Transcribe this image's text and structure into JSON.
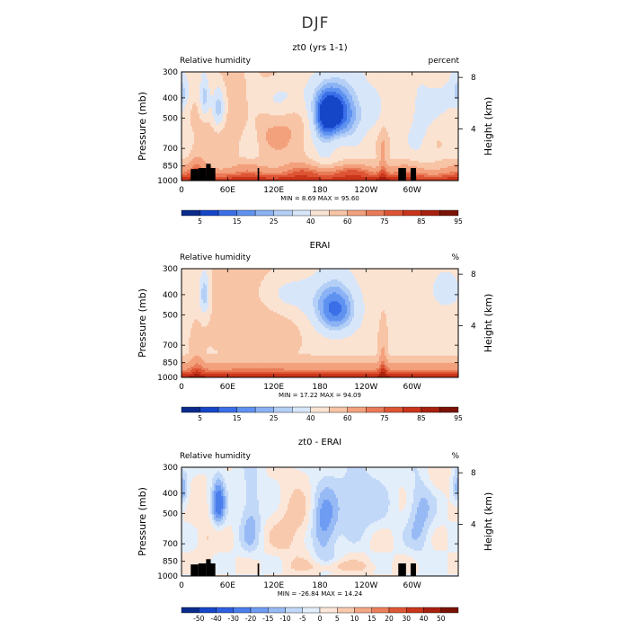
{
  "figure": {
    "title": "DJF"
  },
  "chart_data": [
    {
      "type": "heatmap",
      "title": "zt0 (yrs 1-1)",
      "left_label": "Relative humidity",
      "right_label": "percent",
      "ylabel": "Pressure (mb)",
      "ylabel_right": "Height (km)",
      "x_ticks": [
        "0",
        "60E",
        "120E",
        "180",
        "120W",
        "60W"
      ],
      "x_tick_values": [
        0,
        60,
        120,
        180,
        240,
        300
      ],
      "xlim": [
        0,
        360
      ],
      "y_ticks": [
        "300",
        "400",
        "500",
        "700",
        "850",
        "1000"
      ],
      "y_tick_values": [
        300,
        400,
        500,
        700,
        850,
        1000
      ],
      "ylim": [
        1000,
        300
      ],
      "y_scale": "log",
      "y_right_ticks": [
        "8",
        "4"
      ],
      "y_right_tick_values": [
        8,
        4
      ],
      "min_label": "MIN =",
      "min_value": "8.69",
      "max_label": "MAX =",
      "max_value": "95.60",
      "colorbar_labels": [
        "5",
        "15",
        "25",
        "40",
        "60",
        "75",
        "85",
        "95"
      ],
      "colorbar_colors": [
        "#0a2a8c",
        "#1646c8",
        "#3a6fe8",
        "#5f92f0",
        "#8ab2f4",
        "#b4cff6",
        "#d8e6fa",
        "#fbe3d2",
        "#f8c4a6",
        "#f3a17d",
        "#ea7b58",
        "#dd5534",
        "#c9351b",
        "#a8200e",
        "#7a1206"
      ],
      "field": "rh_model",
      "mask": [
        [
          12,
          22,
          880,
          1000
        ],
        [
          22,
          32,
          870,
          1000
        ],
        [
          32,
          38,
          830,
          1000
        ],
        [
          38,
          44,
          870,
          1000
        ],
        [
          99,
          101,
          870,
          1000
        ],
        [
          282,
          292,
          870,
          1000
        ],
        [
          298,
          305,
          870,
          1000
        ]
      ]
    },
    {
      "type": "heatmap",
      "title": "ERAI",
      "left_label": "Relative humidity",
      "right_label": "%",
      "ylabel": "Pressure (mb)",
      "ylabel_right": "Height (km)",
      "x_ticks": [
        "0",
        "60E",
        "120E",
        "180",
        "120W",
        "60W"
      ],
      "x_tick_values": [
        0,
        60,
        120,
        180,
        240,
        300
      ],
      "xlim": [
        0,
        360
      ],
      "y_ticks": [
        "300",
        "400",
        "500",
        "700",
        "850",
        "1000"
      ],
      "y_tick_values": [
        300,
        400,
        500,
        700,
        850,
        1000
      ],
      "ylim": [
        1000,
        300
      ],
      "y_scale": "log",
      "y_right_ticks": [
        "8",
        "4"
      ],
      "y_right_tick_values": [
        8,
        4
      ],
      "min_label": "MIN =",
      "min_value": "17.22",
      "max_label": "MAX =",
      "max_value": "94.09",
      "colorbar_labels": [
        "5",
        "15",
        "25",
        "40",
        "60",
        "75",
        "85",
        "95"
      ],
      "colorbar_colors": [
        "#0a2a8c",
        "#1646c8",
        "#3a6fe8",
        "#5f92f0",
        "#8ab2f4",
        "#b4cff6",
        "#d8e6fa",
        "#fbe3d2",
        "#f8c4a6",
        "#f3a17d",
        "#ea7b58",
        "#dd5534",
        "#c9351b",
        "#a8200e",
        "#7a1206"
      ],
      "field": "rh_obs",
      "mask": []
    },
    {
      "type": "heatmap",
      "title": "zt0 - ERAI",
      "left_label": "Relative humidity",
      "right_label": "%",
      "ylabel": "Pressure (mb)",
      "ylabel_right": "Height (km)",
      "x_ticks": [
        "0",
        "60E",
        "120E",
        "180",
        "120W",
        "60W"
      ],
      "x_tick_values": [
        0,
        60,
        120,
        180,
        240,
        300
      ],
      "xlim": [
        0,
        360
      ],
      "y_ticks": [
        "300",
        "400",
        "500",
        "700",
        "850",
        "1000"
      ],
      "y_tick_values": [
        300,
        400,
        500,
        700,
        850,
        1000
      ],
      "ylim": [
        1000,
        300
      ],
      "y_scale": "log",
      "y_right_ticks": [
        "8",
        "4"
      ],
      "y_right_tick_values": [
        8,
        4
      ],
      "min_label": "MIN =",
      "min_value": "-26.84",
      "max_label": "MAX =",
      "max_value": "14.24",
      "colorbar_labels": [
        "-50",
        "-40",
        "-30",
        "-20",
        "-15",
        "-10",
        "-5",
        "0",
        "5",
        "10",
        "15",
        "20",
        "30",
        "40",
        "50"
      ],
      "colorbar_colors": [
        "#0a2a8c",
        "#1646c8",
        "#2f5fe0",
        "#4a7eec",
        "#6e9cf2",
        "#97baf5",
        "#c2d8f8",
        "#e3eefb",
        "#fbe6d8",
        "#f8c9ad",
        "#f3a784",
        "#eb7f5b",
        "#dd5735",
        "#c8361b",
        "#a8200e",
        "#7a1206"
      ],
      "field": "rh_diff",
      "mask": [
        [
          12,
          22,
          880,
          1000
        ],
        [
          22,
          32,
          870,
          1000
        ],
        [
          32,
          38,
          830,
          1000
        ],
        [
          38,
          44,
          870,
          1000
        ],
        [
          99,
          101,
          870,
          1000
        ],
        [
          282,
          292,
          870,
          1000
        ],
        [
          298,
          305,
          870,
          1000
        ]
      ]
    }
  ]
}
